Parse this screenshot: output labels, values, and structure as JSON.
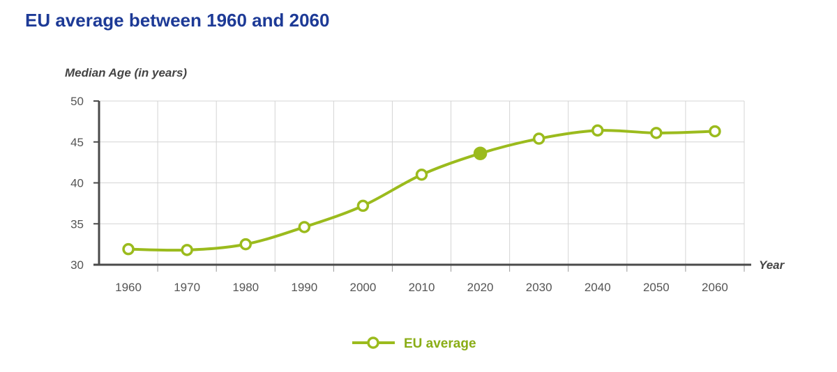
{
  "title": "EU average between 1960 and 2060",
  "colors": {
    "series": "#9bbb1d",
    "title": "#1d3a96",
    "grid": "#d4d4d4",
    "axis": "#4a4a4a"
  },
  "chart_data": {
    "type": "line",
    "title": "EU average between 1960 and 2060",
    "ylabel": "Median Age (in years)",
    "xlabel": "Year",
    "ylim": [
      30,
      50
    ],
    "yticks": [
      "30",
      "35",
      "40",
      "45",
      "50"
    ],
    "x": [
      "1960",
      "1970",
      "1980",
      "1990",
      "2000",
      "2010",
      "2020",
      "2030",
      "2040",
      "2050",
      "2060"
    ],
    "grid": true,
    "legend": "bottom-center",
    "series": [
      {
        "name": "EU average",
        "values": [
          31.9,
          31.8,
          32.5,
          34.6,
          37.2,
          41.0,
          43.6,
          45.4,
          46.4,
          46.1,
          46.3
        ],
        "filled_point": "2020"
      }
    ]
  }
}
